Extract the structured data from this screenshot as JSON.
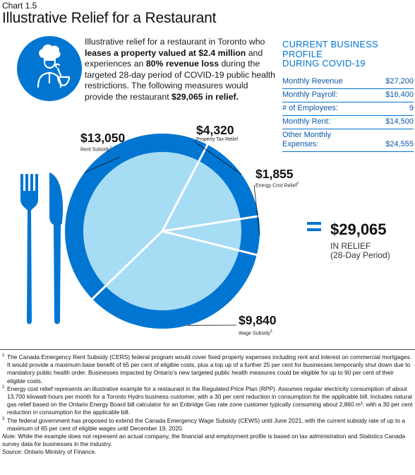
{
  "header": {
    "chart_label": "Chart 1.5",
    "title": "Illustrative Relief for a Restaurant"
  },
  "intro": {
    "p1": "Illustrative relief for a restaurant in Toronto who ",
    "b1": "leases a property valued at $2.4 million",
    "p2": " and experiences an ",
    "b2": "80% revenue loss",
    "p3": " during the targeted 28-day period of COVID-19 public health restrictions. The following measures would provide the restaurant ",
    "b3": "$29,065 in relief."
  },
  "profile": {
    "title_line1": "CURRENT BUSINESS PROFILE",
    "title_line2": "DURING COVID-19",
    "rows": [
      {
        "label": "Monthly Revenue",
        "value": "$27,200"
      },
      {
        "label": "Monthly Payroll:",
        "value": "$16,400"
      },
      {
        "label": "# of Employees:",
        "value": "9"
      },
      {
        "label": "Monthly Rent:",
        "value": "$14,500"
      },
      {
        "label_line1": "Other Monthly",
        "label": "Expenses:",
        "value": "$24,555"
      }
    ]
  },
  "chart_data": {
    "type": "pie",
    "slices": [
      {
        "label": "Rent Subsidy",
        "footnote": "1",
        "value": 13050,
        "display": "$13,050"
      },
      {
        "label": "Property Tax Relief",
        "value": 4320,
        "display": "$4,320"
      },
      {
        "label": "Energy Cost Relief",
        "footnote": "2",
        "value": 1855,
        "display": "$1,855"
      },
      {
        "label": "Wage Subsidy",
        "footnote": "3",
        "value": 9840,
        "display": "$9,840"
      }
    ],
    "colors": {
      "outer": "#0076d2",
      "inner": "#a7dcf5",
      "divider": "#ffffff"
    }
  },
  "total": {
    "amount": "$29,065",
    "line1": "IN RELIEF",
    "line2": "(28-Day Period)"
  },
  "footnotes": {
    "fn1_num": "1",
    "fn1": "The Canada Emergency Rent Subsidy (CERS)  federal program would cover fixed property expenses including rent and interest on commercial mortgages. It would provide a maximum  base benefit of 65 per cent of eligible costs, plus a top up of a further 25 per cent for businesses temporarily shut down due to mandatory public health order. Businesses impacted by Ontario’s new targeted public health measures could be eligible for up to 90 per cent of their eligible costs.",
    "fn2_num": "2",
    "fn2": "Energy cost relief represents an illustrative example for a restaurant in the Regulated Price Plan (RPP).  Assumes regular electricity consumption of about 13,700 kilowatt-hours per month for a Toronto Hydro business customer, with a 30 per cent reduction in consumption for the applicable bill. Includes natural gas relief based on the Ontario Energy Board bill calculator for an Enbridge Gas rate zone customer typically consuming about 2,860 m³,  with a 30 per cent reduction in consumption for the applicable bill.",
    "fn3_num": "3",
    "fn3": "The federal government has proposed to extend the Canada Emergency Wage Subsidy (CEWS)  until June 2021, with the current subsidy rate of up to a maximum  of 65 per cent of eligible wages until December 19, 2020.",
    "note_label": "Note:",
    "note": " While the example does not represent an actual company, the financial and employment profile is based on tax administration and Statistics Canada survey data for businesses in the industry.",
    "source_label": "Source:",
    "source": " Ontario Ministry of Finance."
  }
}
